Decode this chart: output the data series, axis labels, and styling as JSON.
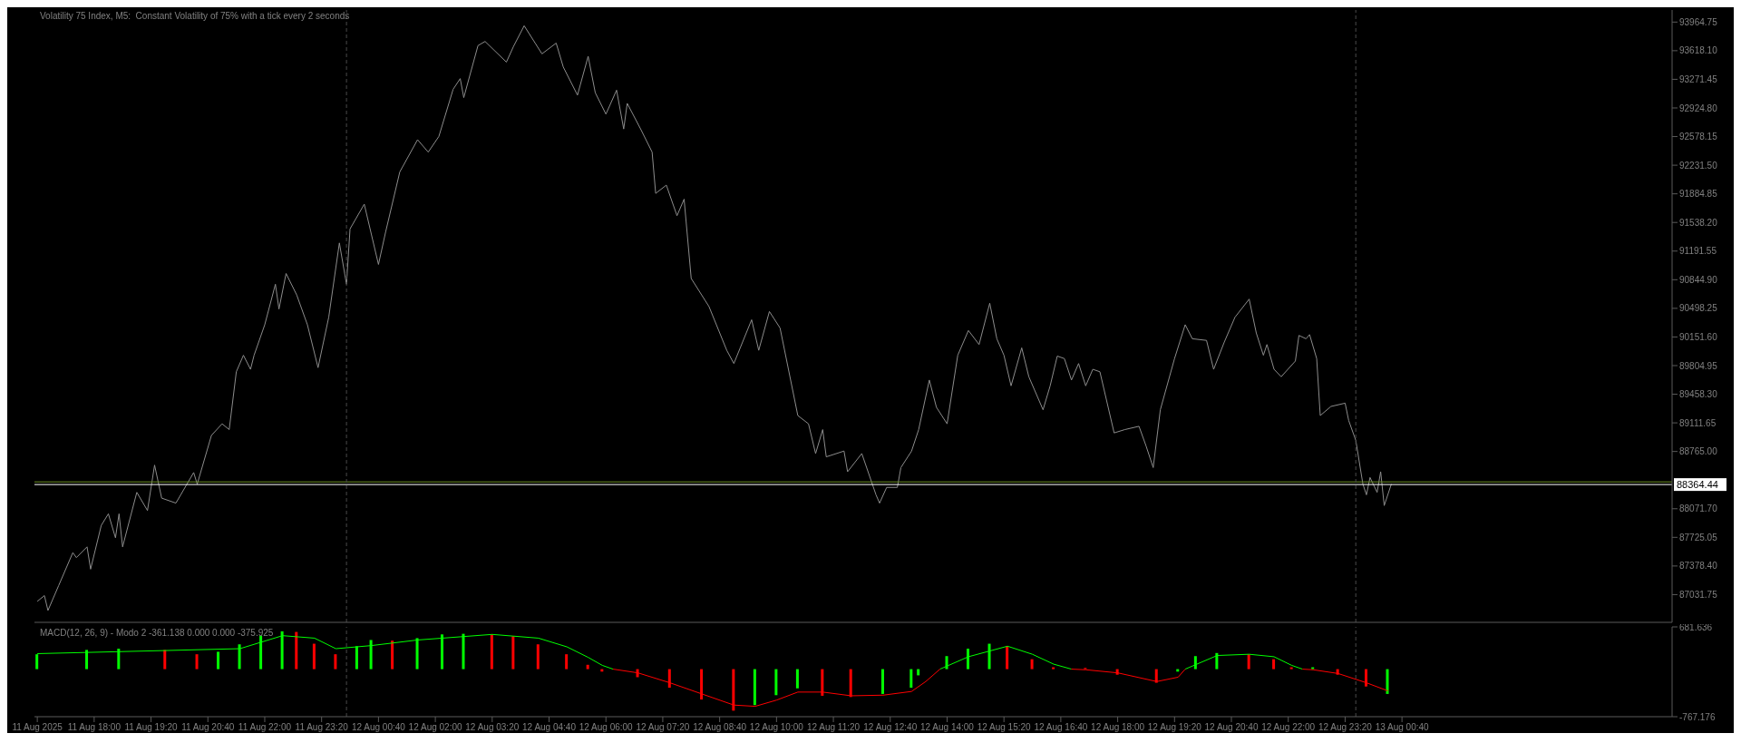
{
  "chart_data": [
    {
      "type": "line",
      "title": "Volatility 75 Index, M5:  Constant Volatility of 75% with a tick every 2 seconds",
      "x": [
        "2025-08-11T16:40",
        "2025-08-11T16:50",
        "2025-08-11T16:55",
        "2025-08-11T17:10",
        "2025-08-11T17:30",
        "2025-08-11T17:35",
        "2025-08-11T17:50",
        "2025-08-11T17:55",
        "2025-08-11T18:10",
        "2025-08-11T18:20",
        "2025-08-11T18:30",
        "2025-08-11T18:35",
        "2025-08-11T18:40",
        "2025-08-11T19:00",
        "2025-08-11T19:15",
        "2025-08-11T19:25",
        "2025-08-11T19:35",
        "2025-08-11T19:55",
        "2025-08-11T20:20",
        "2025-08-11T20:25",
        "2025-08-11T20:45",
        "2025-08-11T21:00",
        "2025-08-11T21:10",
        "2025-08-11T21:20",
        "2025-08-11T21:30",
        "2025-08-11T21:40",
        "2025-08-11T21:45",
        "2025-08-11T22:00",
        "2025-08-11T22:15",
        "2025-08-11T22:20",
        "2025-08-11T22:30",
        "2025-08-11T22:45",
        "2025-08-11T23:00",
        "2025-08-11T23:15",
        "2025-08-11T23:30",
        "2025-08-11T23:45",
        "2025-08-11T23:55",
        "2025-08-12T00:00",
        "2025-08-12T00:20",
        "2025-08-12T00:40",
        "2025-08-12T00:50",
        "2025-08-12T01:10",
        "2025-08-12T01:35",
        "2025-08-12T01:50",
        "2025-08-12T02:05",
        "2025-08-12T02:25",
        "2025-08-12T02:35",
        "2025-08-12T02:40",
        "2025-08-12T03:00",
        "2025-08-12T03:10",
        "2025-08-12T03:40",
        "2025-08-12T03:50",
        "2025-08-12T04:05",
        "2025-08-12T04:30",
        "2025-08-12T04:50",
        "2025-08-12T05:00",
        "2025-08-12T05:20",
        "2025-08-12T05:35",
        "2025-08-12T05:45",
        "2025-08-12T06:00",
        "2025-08-12T06:15",
        "2025-08-12T06:25",
        "2025-08-12T06:30",
        "2025-08-12T06:50",
        "2025-08-12T07:05",
        "2025-08-12T07:10",
        "2025-08-12T07:25",
        "2025-08-12T07:40",
        "2025-08-12T07:50",
        "2025-08-12T08:00",
        "2025-08-12T08:25",
        "2025-08-12T08:50",
        "2025-08-12T09:00",
        "2025-08-12T09:25",
        "2025-08-12T09:35",
        "2025-08-12T09:50",
        "2025-08-12T10:05",
        "2025-08-12T10:30",
        "2025-08-12T10:45",
        "2025-08-12T10:55",
        "2025-08-12T11:05",
        "2025-08-12T11:10",
        "2025-08-12T11:35",
        "2025-08-12T11:40",
        "2025-08-12T12:00",
        "2025-08-12T12:20",
        "2025-08-12T12:25",
        "2025-08-12T12:35",
        "2025-08-12T12:50",
        "2025-08-12T12:55",
        "2025-08-12T13:10",
        "2025-08-12T13:20",
        "2025-08-12T13:35",
        "2025-08-12T13:45",
        "2025-08-12T14:00",
        "2025-08-12T14:15",
        "2025-08-12T14:30",
        "2025-08-12T14:45",
        "2025-08-12T15:00",
        "2025-08-12T15:10",
        "2025-08-12T15:20",
        "2025-08-12T15:30",
        "2025-08-12T15:45",
        "2025-08-12T15:55",
        "2025-08-12T16:15",
        "2025-08-12T16:25",
        "2025-08-12T16:35",
        "2025-08-12T16:45",
        "2025-08-12T16:55",
        "2025-08-12T17:05",
        "2025-08-12T17:15",
        "2025-08-12T17:25",
        "2025-08-12T17:35",
        "2025-08-12T17:55",
        "2025-08-12T18:10",
        "2025-08-12T18:30",
        "2025-08-12T18:40",
        "2025-08-12T18:50",
        "2025-08-12T19:00",
        "2025-08-12T19:20",
        "2025-08-12T19:35",
        "2025-08-12T19:45",
        "2025-08-12T20:05",
        "2025-08-12T20:15",
        "2025-08-12T20:30",
        "2025-08-12T20:45",
        "2025-08-12T21:05",
        "2025-08-12T21:15",
        "2025-08-12T21:25",
        "2025-08-12T21:30",
        "2025-08-12T21:40",
        "2025-08-12T21:50",
        "2025-08-12T22:10",
        "2025-08-12T22:15",
        "2025-08-12T22:25",
        "2025-08-12T22:30",
        "2025-08-12T22:40",
        "2025-08-12T22:45",
        "2025-08-12T23:00",
        "2025-08-12T23:20",
        "2025-08-12T23:25",
        "2025-08-12T23:35",
        "2025-08-12T23:45",
        "2025-08-12T23:50",
        "2025-08-12T23:55",
        "2025-08-13T00:05",
        "2025-08-13T00:10",
        "2025-08-13T00:15",
        "2025-08-13T00:25"
      ],
      "series": [
        {
          "color": "#8c8c8c",
          "values": [
            86950,
            87020,
            86840,
            87140,
            87540,
            87480,
            87610,
            87340,
            87870,
            88010,
            87720,
            88010,
            87610,
            88270,
            88050,
            88600,
            88200,
            88140,
            88510,
            88370,
            88960,
            89100,
            89030,
            89730,
            89930,
            89760,
            89930,
            90300,
            90790,
            90490,
            90920,
            90660,
            90300,
            89780,
            90390,
            91290,
            90790,
            91460,
            91760,
            91030,
            91420,
            92150,
            92540,
            92390,
            92580,
            93150,
            93280,
            93050,
            93680,
            93730,
            93480,
            93670,
            93920,
            93580,
            93710,
            93420,
            93080,
            93550,
            93110,
            92850,
            93140,
            92670,
            92980,
            92650,
            92390,
            91890,
            91990,
            91620,
            91820,
            90860,
            90520,
            89990,
            89830,
            90360,
            89990,
            90460,
            90260,
            89200,
            89100,
            88740,
            89030,
            88700,
            88770,
            88520,
            88740,
            88240,
            88140,
            88330,
            88330,
            88570,
            88770,
            89030,
            89630,
            89300,
            89100,
            89930,
            90230,
            90060,
            90560,
            90130,
            89930,
            89560,
            90020,
            89670,
            89270,
            89560,
            89920,
            89890,
            89630,
            89830,
            89560,
            89760,
            89730,
            88990,
            89030,
            89070,
            88830,
            88570,
            89270,
            89890,
            90300,
            90130,
            90110,
            89760,
            90090,
            90390,
            90610,
            90200,
            89930,
            90060,
            89760,
            89670,
            89860,
            90170,
            90130,
            90180,
            89890,
            89200,
            89310,
            89350,
            89140,
            88900,
            88370,
            88240,
            88450,
            88270,
            88520,
            88110,
            88370
          ]
        }
      ],
      "xlim": [
        "2025-08-11T16:36",
        "2025-08-13T07:00"
      ],
      "ylim": [
        86696,
        94111
      ],
      "yticks": [
        {
          "value": 87031.75,
          "label": "87031.75"
        },
        {
          "value": 87378.4,
          "label": "87378.40"
        },
        {
          "value": 87725.05,
          "label": "87725.05"
        },
        {
          "value": 88071.7,
          "label": "88071.70"
        },
        {
          "value": 88765,
          "label": "88765.00"
        },
        {
          "value": 89111.65,
          "label": "89111.65"
        },
        {
          "value": 89458.3,
          "label": "89458.30"
        },
        {
          "value": 89804.95,
          "label": "89804.95"
        },
        {
          "value": 90151.6,
          "label": "90151.60"
        },
        {
          "value": 90498.25,
          "label": "90498.25"
        },
        {
          "value": 90844.9,
          "label": "90844.90"
        },
        {
          "value": 91191.55,
          "label": "91191.55"
        },
        {
          "value": 91538.2,
          "label": "91538.20"
        },
        {
          "value": 91884.85,
          "label": "91884.85"
        },
        {
          "value": 92231.5,
          "label": "92231.50"
        },
        {
          "value": 92578.15,
          "label": "92578.15"
        },
        {
          "value": 92924.8,
          "label": "92924.80"
        },
        {
          "value": 93271.45,
          "label": "93271.45"
        },
        {
          "value": 93618.1,
          "label": "93618.10"
        },
        {
          "value": 93964.75,
          "label": "93964.75"
        }
      ],
      "tick_labels": "y",
      "ref_lines": [
        {
          "axis": "y",
          "value": 88397,
          "color": "#6b8e23"
        },
        {
          "axis": "y",
          "value": 88364.44,
          "label": "88364.44",
          "color": "#ffffff"
        },
        {
          "axis": "x",
          "value": "2025-08-11T23:55",
          "color": "#4a4a4a",
          "line_style": "dashed"
        },
        {
          "axis": "x",
          "value": "2025-08-12T23:35",
          "color": "#4a4a4a",
          "line_style": "dashed"
        }
      ]
    },
    {
      "type": "bar",
      "title": "MACD(12, 26, 9) - Modo 2 -361.138 0.000 0.000 -375.925",
      "series": [
        {
          "x": [
            "2025-08-11T16:40",
            "2025-08-11T17:50",
            "2025-08-11T18:35",
            "2025-08-11T19:40",
            "2025-08-11T20:25",
            "2025-08-11T20:55",
            "2025-08-11T21:25",
            "2025-08-11T21:55",
            "2025-08-11T22:25",
            "2025-08-11T22:45",
            "2025-08-11T23:10",
            "2025-08-11T23:40",
            "2025-08-12T00:10",
            "2025-08-12T00:30",
            "2025-08-12T01:00",
            "2025-08-12T01:35",
            "2025-08-12T02:10",
            "2025-08-12T02:40",
            "2025-08-12T03:20",
            "2025-08-12T03:50",
            "2025-08-12T04:25",
            "2025-08-12T05:05",
            "2025-08-12T05:35",
            "2025-08-12T05:55",
            "2025-08-12T06:45",
            "2025-08-12T07:30",
            "2025-08-12T08:15",
            "2025-08-12T09:00",
            "2025-08-12T09:30",
            "2025-08-12T10:00",
            "2025-08-12T10:30",
            "2025-08-12T11:05",
            "2025-08-12T11:45",
            "2025-08-12T12:30",
            "2025-08-12T13:10",
            "2025-08-12T13:20",
            "2025-08-12T14:00",
            "2025-08-12T14:30",
            "2025-08-12T15:00",
            "2025-08-12T15:25",
            "2025-08-12T16:00",
            "2025-08-12T16:30",
            "2025-08-12T17:15",
            "2025-08-12T18:00",
            "2025-08-12T18:55",
            "2025-08-12T19:25",
            "2025-08-12T19:50",
            "2025-08-12T20:20",
            "2025-08-12T21:05",
            "2025-08-12T21:40",
            "2025-08-12T22:05",
            "2025-08-12T22:35",
            "2025-08-12T23:10",
            "2025-08-12T23:50",
            "2025-08-13T00:20"
          ],
          "values": [
            240,
            310,
            330,
            310,
            240,
            280,
            400,
            540,
            610,
            600,
            410,
            240,
            370,
            470,
            460,
            500,
            560,
            570,
            560,
            530,
            400,
            240,
            70,
            -40,
            -130,
            -300,
            -490,
            -670,
            -580,
            -420,
            -310,
            -430,
            -450,
            -400,
            -300,
            -100,
            210,
            330,
            410,
            370,
            160,
            30,
            20,
            -90,
            -220,
            -40,
            210,
            260,
            240,
            160,
            30,
            30,
            -90,
            -280,
            -400
          ],
          "colors": [
            "#00ff00",
            "#00ff00",
            "#00ff00",
            "#ff0000",
            "#ff0000",
            "#00ff00",
            "#00ff00",
            "#00ff00",
            "#00ff00",
            "#ff0000",
            "#ff0000",
            "#ff0000",
            "#00ff00",
            "#00ff00",
            "#ff0000",
            "#00ff00",
            "#00ff00",
            "#00ff00",
            "#ff0000",
            "#ff0000",
            "#ff0000",
            "#ff0000",
            "#ff0000",
            "#ff0000",
            "#ff0000",
            "#ff0000",
            "#ff0000",
            "#ff0000",
            "#00ff00",
            "#00ff00",
            "#00ff00",
            "#ff0000",
            "#ff0000",
            "#00ff00",
            "#00ff00",
            "#00ff00",
            "#00ff00",
            "#00ff00",
            "#00ff00",
            "#ff0000",
            "#ff0000",
            "#ff0000",
            "#ff0000",
            "#ff0000",
            "#ff0000",
            "#00ff00",
            "#00ff00",
            "#00ff00",
            "#ff0000",
            "#ff0000",
            "#ff0000",
            "#00ff00",
            "#ff0000",
            "#ff0000",
            "#00ff00"
          ]
        },
        {
          "type": "line",
          "color": "#00ff00",
          "x": [
            "2025-08-11T16:40",
            "2025-08-11T19:40",
            "2025-08-11T21:25",
            "2025-08-11T22:25",
            "2025-08-11T23:10",
            "2025-08-11T23:40",
            "2025-08-12T00:30",
            "2025-08-12T01:35",
            "2025-08-12T03:20",
            "2025-08-12T04:25",
            "2025-08-12T05:05",
            "2025-08-12T05:35",
            "2025-08-12T05:55",
            "2025-08-12T06:10",
            "2025-08-12T10:00",
            "2025-08-12T13:50",
            "2025-08-12T14:30",
            "2025-08-12T15:25",
            "2025-08-12T16:00",
            "2025-08-12T16:30",
            "2025-08-12T16:55",
            "2025-08-12T18:00",
            "2025-08-12T19:35",
            "2025-08-12T20:20",
            "2025-08-12T21:05",
            "2025-08-12T21:40",
            "2025-08-12T22:05",
            "2025-08-12T22:20"
          ],
          "values": [
            250,
            300,
            330,
            540,
            500,
            330,
            380,
            470,
            560,
            500,
            360,
            190,
            60,
            0,
            null,
            0,
            200,
            370,
            240,
            80,
            0,
            null,
            0,
            220,
            240,
            200,
            60,
            0
          ]
        },
        {
          "type": "line",
          "color": "#ff0000",
          "x": [
            "2025-08-12T06:10",
            "2025-08-12T06:45",
            "2025-08-12T07:30",
            "2025-08-12T08:15",
            "2025-08-12T09:00",
            "2025-08-12T09:30",
            "2025-08-12T10:00",
            "2025-08-12T10:30",
            "2025-08-12T11:05",
            "2025-08-12T11:45",
            "2025-08-12T12:30",
            "2025-08-12T13:10",
            "2025-08-12T13:30",
            "2025-08-12T13:50",
            "2025-08-12T15:00",
            "2025-08-12T16:55",
            "2025-08-12T17:15",
            "2025-08-12T18:00",
            "2025-08-12T18:55",
            "2025-08-12T19:25",
            "2025-08-12T19:35",
            "2025-08-12T21:00",
            "2025-08-12T22:20",
            "2025-08-12T22:35",
            "2025-08-12T23:10",
            "2025-08-12T23:50",
            "2025-08-13T00:20"
          ],
          "values": [
            0,
            -60,
            -220,
            -400,
            -580,
            -600,
            -500,
            -370,
            -370,
            -430,
            -420,
            -360,
            -200,
            0,
            null,
            0,
            -10,
            -60,
            -200,
            -130,
            0,
            null,
            0,
            -10,
            -70,
            -220,
            -350
          ]
        }
      ],
      "xlim": [
        "2025-08-11T16:36",
        "2025-08-13T07:00"
      ],
      "xticks": [
        {
          "value": "2025-08-11T16:40",
          "label": "11 Aug 2025"
        },
        {
          "value": "2025-08-11T18:00",
          "label": "11 Aug 18:00"
        },
        {
          "value": "2025-08-11T19:20",
          "label": "11 Aug 19:20"
        },
        {
          "value": "2025-08-11T20:40",
          "label": "11 Aug 20:40"
        },
        {
          "value": "2025-08-11T22:00",
          "label": "11 Aug 22:00"
        },
        {
          "value": "2025-08-11T23:20",
          "label": "11 Aug 23:20"
        },
        {
          "value": "2025-08-12T00:40",
          "label": "12 Aug 00:40"
        },
        {
          "value": "2025-08-12T02:00",
          "label": "12 Aug 02:00"
        },
        {
          "value": "2025-08-12T03:20",
          "label": "12 Aug 03:20"
        },
        {
          "value": "2025-08-12T04:40",
          "label": "12 Aug 04:40"
        },
        {
          "value": "2025-08-12T06:00",
          "label": "12 Aug 06:00"
        },
        {
          "value": "2025-08-12T07:20",
          "label": "12 Aug 07:20"
        },
        {
          "value": "2025-08-12T08:40",
          "label": "12 Aug 08:40"
        },
        {
          "value": "2025-08-12T10:00",
          "label": "12 Aug 10:00"
        },
        {
          "value": "2025-08-12T11:20",
          "label": "12 Aug 11:20"
        },
        {
          "value": "2025-08-12T12:40",
          "label": "12 Aug 12:40"
        },
        {
          "value": "2025-08-12T14:00",
          "label": "12 Aug 14:00"
        },
        {
          "value": "2025-08-12T15:20",
          "label": "12 Aug 15:20"
        },
        {
          "value": "2025-08-12T16:40",
          "label": "12 Aug 16:40"
        },
        {
          "value": "2025-08-12T18:00",
          "label": "12 Aug 18:00"
        },
        {
          "value": "2025-08-12T19:20",
          "label": "12 Aug 19:20"
        },
        {
          "value": "2025-08-12T20:40",
          "label": "12 Aug 20:40"
        },
        {
          "value": "2025-08-12T22:00",
          "label": "12 Aug 22:00"
        },
        {
          "value": "2025-08-12T23:20",
          "label": "12 Aug 23:20"
        },
        {
          "value": "2025-08-13T00:40",
          "label": "13 Aug 00:40"
        }
      ],
      "ylim": [
        -767.176,
        681.636
      ],
      "yticks": [
        -767.176,
        681.636
      ],
      "ref_lines": [
        {
          "axis": "x",
          "value": "2025-08-11T23:55",
          "color": "#4a4a4a",
          "line_style": "dashed"
        },
        {
          "axis": "x",
          "value": "2025-08-12T23:35",
          "color": "#4a4a4a",
          "line_style": "dashed"
        }
      ]
    }
  ]
}
